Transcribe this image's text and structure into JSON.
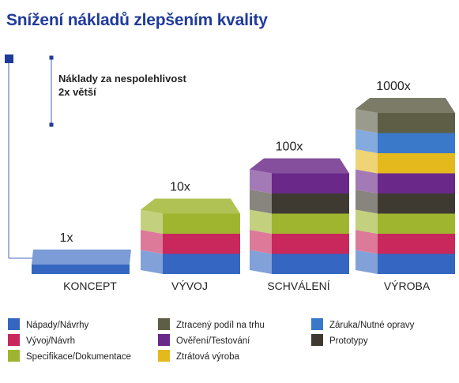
{
  "title": "Snížení nákladů zlepšením kvality",
  "note": {
    "line1": "Náklady za nespolehlivost",
    "line2": "2x větší"
  },
  "chart_data": {
    "type": "bar",
    "title": "Snížení nákladů zlepšením kvality",
    "categories": [
      "KONCEPT",
      "VÝVOJ",
      "SCHVÁLENÍ",
      "VÝROBA"
    ],
    "value_labels": [
      "1x",
      "10x",
      "100x",
      "1000x"
    ],
    "values": [
      1,
      10,
      100,
      1000
    ],
    "series": [
      {
        "name": "Nápady/Návrhy",
        "color": "#3567c2"
      },
      {
        "name": "Vývoj/Návrh",
        "color": "#c8285c"
      },
      {
        "name": "Specifikace/Dokumentace",
        "color": "#9fb52f"
      },
      {
        "name": "Ztracený podíl na trhu",
        "color": "#5e5e47"
      },
      {
        "name": "Ověření/Testování",
        "color": "#6a2888"
      },
      {
        "name": "Ztrátová výroba",
        "color": "#e3b91e"
      },
      {
        "name": "Záruka/Nutné opravy",
        "color": "#3a78c9"
      },
      {
        "name": "Prototypy",
        "color": "#3f3a31"
      }
    ],
    "stacks": [
      [
        "Nápady/Návrhy"
      ],
      [
        "Nápady/Návrhy",
        "Vývoj/Návrh",
        "Specifikace/Dokumentace"
      ],
      [
        "Nápady/Návrhy",
        "Vývoj/Návrh",
        "Specifikace/Dokumentace",
        "Prototypy",
        "Ověření/Testování"
      ],
      [
        "Nápady/Návrhy",
        "Vývoj/Návrh",
        "Specifikace/Dokumentace",
        "Prototypy",
        "Ověření/Testování",
        "Ztrátová výroba",
        "Záruka/Nutné opravy",
        "Ztracený podíl na trhu"
      ]
    ],
    "legend_placement": "bottom"
  }
}
